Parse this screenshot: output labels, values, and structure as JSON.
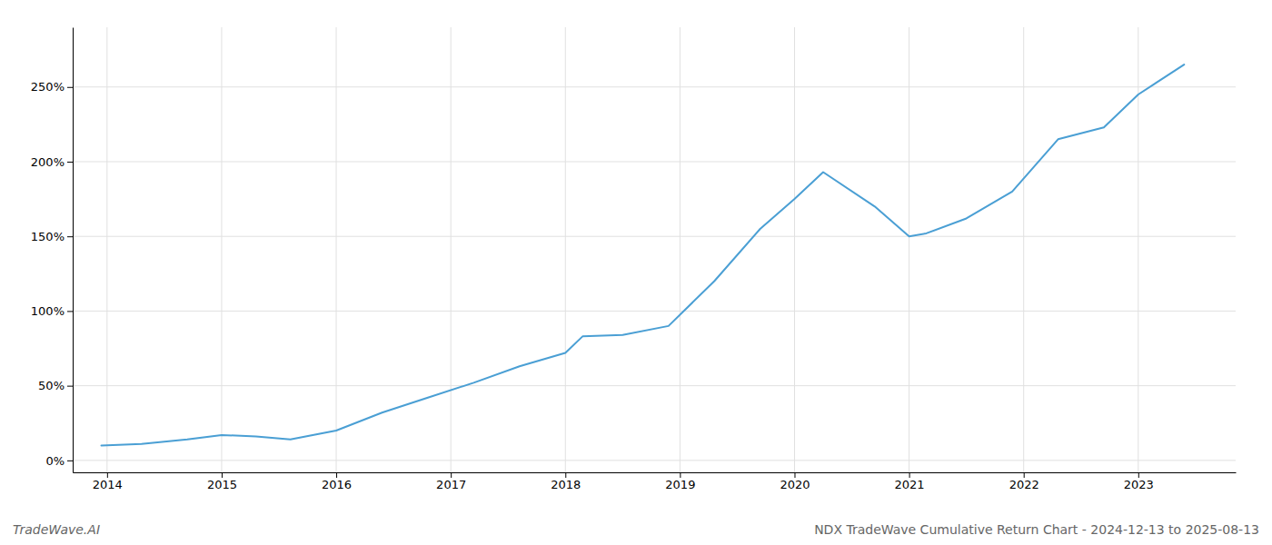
{
  "chart_data": {
    "type": "line",
    "title": "NDX TradeWave Cumulative Return Chart - 2024-12-13 to 2025-08-13",
    "annotations": [
      "TradeWave.AI"
    ],
    "x": [
      2013.95,
      2014.3,
      2014.7,
      2015.0,
      2015.3,
      2015.6,
      2016.0,
      2016.4,
      2016.8,
      2017.2,
      2017.6,
      2018.0,
      2018.15,
      2018.5,
      2018.9,
      2019.3,
      2019.7,
      2020.0,
      2020.25,
      2020.7,
      2021.0,
      2021.15,
      2021.5,
      2021.9,
      2022.3,
      2022.7,
      2023.0,
      2023.4
    ],
    "values": [
      10,
      11,
      14,
      17,
      16,
      14,
      20,
      32,
      42,
      52,
      63,
      72,
      83,
      84,
      90,
      120,
      155,
      175,
      193,
      170,
      150,
      152,
      162,
      180,
      215,
      223,
      245,
      265
    ],
    "color": "#4a9fd4",
    "xlim": [
      2013.7,
      2023.85
    ],
    "xticks": [
      2014,
      2015,
      2016,
      2017,
      2018,
      2019,
      2020,
      2021,
      2022,
      2023
    ],
    "ylim": [
      -8,
      290
    ],
    "yticks": [
      {
        "value": 0,
        "label": "0%"
      },
      {
        "value": 50,
        "label": "50%"
      },
      {
        "value": 100,
        "label": "100%"
      },
      {
        "value": 150,
        "label": "150%"
      },
      {
        "value": 200,
        "label": "200%"
      },
      {
        "value": 250,
        "label": "250%"
      }
    ],
    "grid": true
  }
}
